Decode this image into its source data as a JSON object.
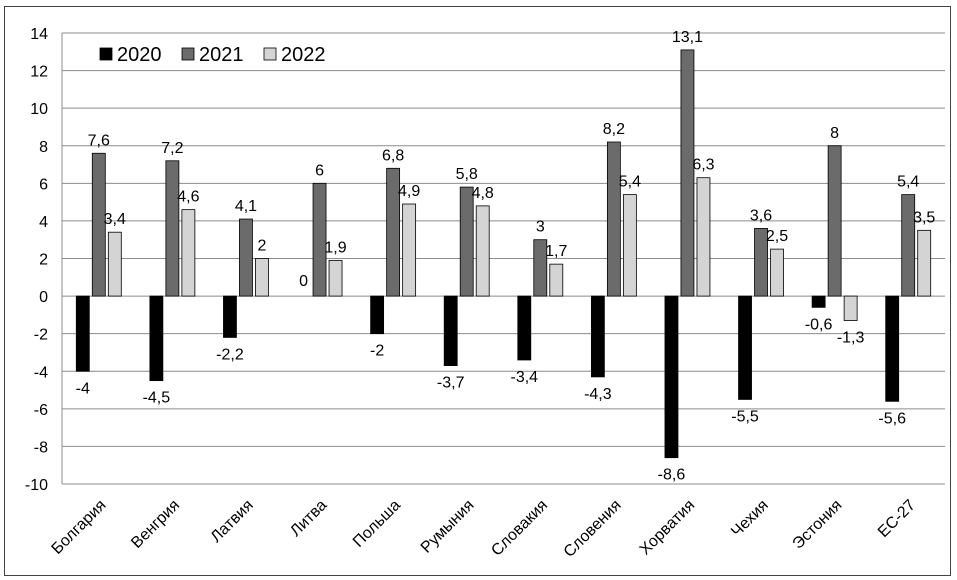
{
  "chart_data": {
    "type": "bar",
    "categories": [
      "Болгария",
      "Венгрия",
      "Латвия",
      "Литва",
      "Польша",
      "Румыния",
      "Словакия",
      "Словения",
      "Хорватия",
      "Чехия",
      "Эстония",
      "ЕС-27"
    ],
    "series": [
      {
        "name": "2020",
        "color": "#000000",
        "values": [
          -4,
          -4.5,
          -2.2,
          0,
          -2,
          -3.7,
          -3.4,
          -4.3,
          -8.6,
          -5.5,
          -0.6,
          -5.6
        ],
        "labels": [
          "-4",
          "-4,5",
          "-2,2",
          "0",
          "-2",
          "-3,7",
          "-3,4",
          "-4,3",
          "-8,6",
          "-5,5",
          "-0,6",
          "-5,6"
        ]
      },
      {
        "name": "2021",
        "color": "#6b6b6b",
        "values": [
          7.6,
          7.2,
          4.1,
          6,
          6.8,
          5.8,
          3,
          8.2,
          13.1,
          3.6,
          8,
          5.4
        ],
        "labels": [
          "7,6",
          "7,2",
          "4,1",
          "6",
          "6,8",
          "5,8",
          "3",
          "8,2",
          "13,1",
          "3,6",
          "8",
          "5,4"
        ]
      },
      {
        "name": "2022",
        "color": "#d4d4d4",
        "values": [
          3.4,
          4.6,
          2,
          1.9,
          4.9,
          4.8,
          1.7,
          5.4,
          6.3,
          2.5,
          -1.3,
          3.5
        ],
        "labels": [
          "3,4",
          "4,6",
          "2",
          "1,9",
          "4,9",
          "4,8",
          "1,7",
          "5,4",
          "6,3",
          "2,5",
          "-1,3",
          "3,5"
        ]
      }
    ],
    "ylim": [
      -10,
      14
    ],
    "yticks": [
      -10,
      -8,
      -6,
      -4,
      -2,
      0,
      2,
      4,
      6,
      8,
      10,
      12,
      14
    ],
    "grid": true,
    "legend_position": "top-left",
    "title": "",
    "xlabel": "",
    "ylabel": ""
  }
}
